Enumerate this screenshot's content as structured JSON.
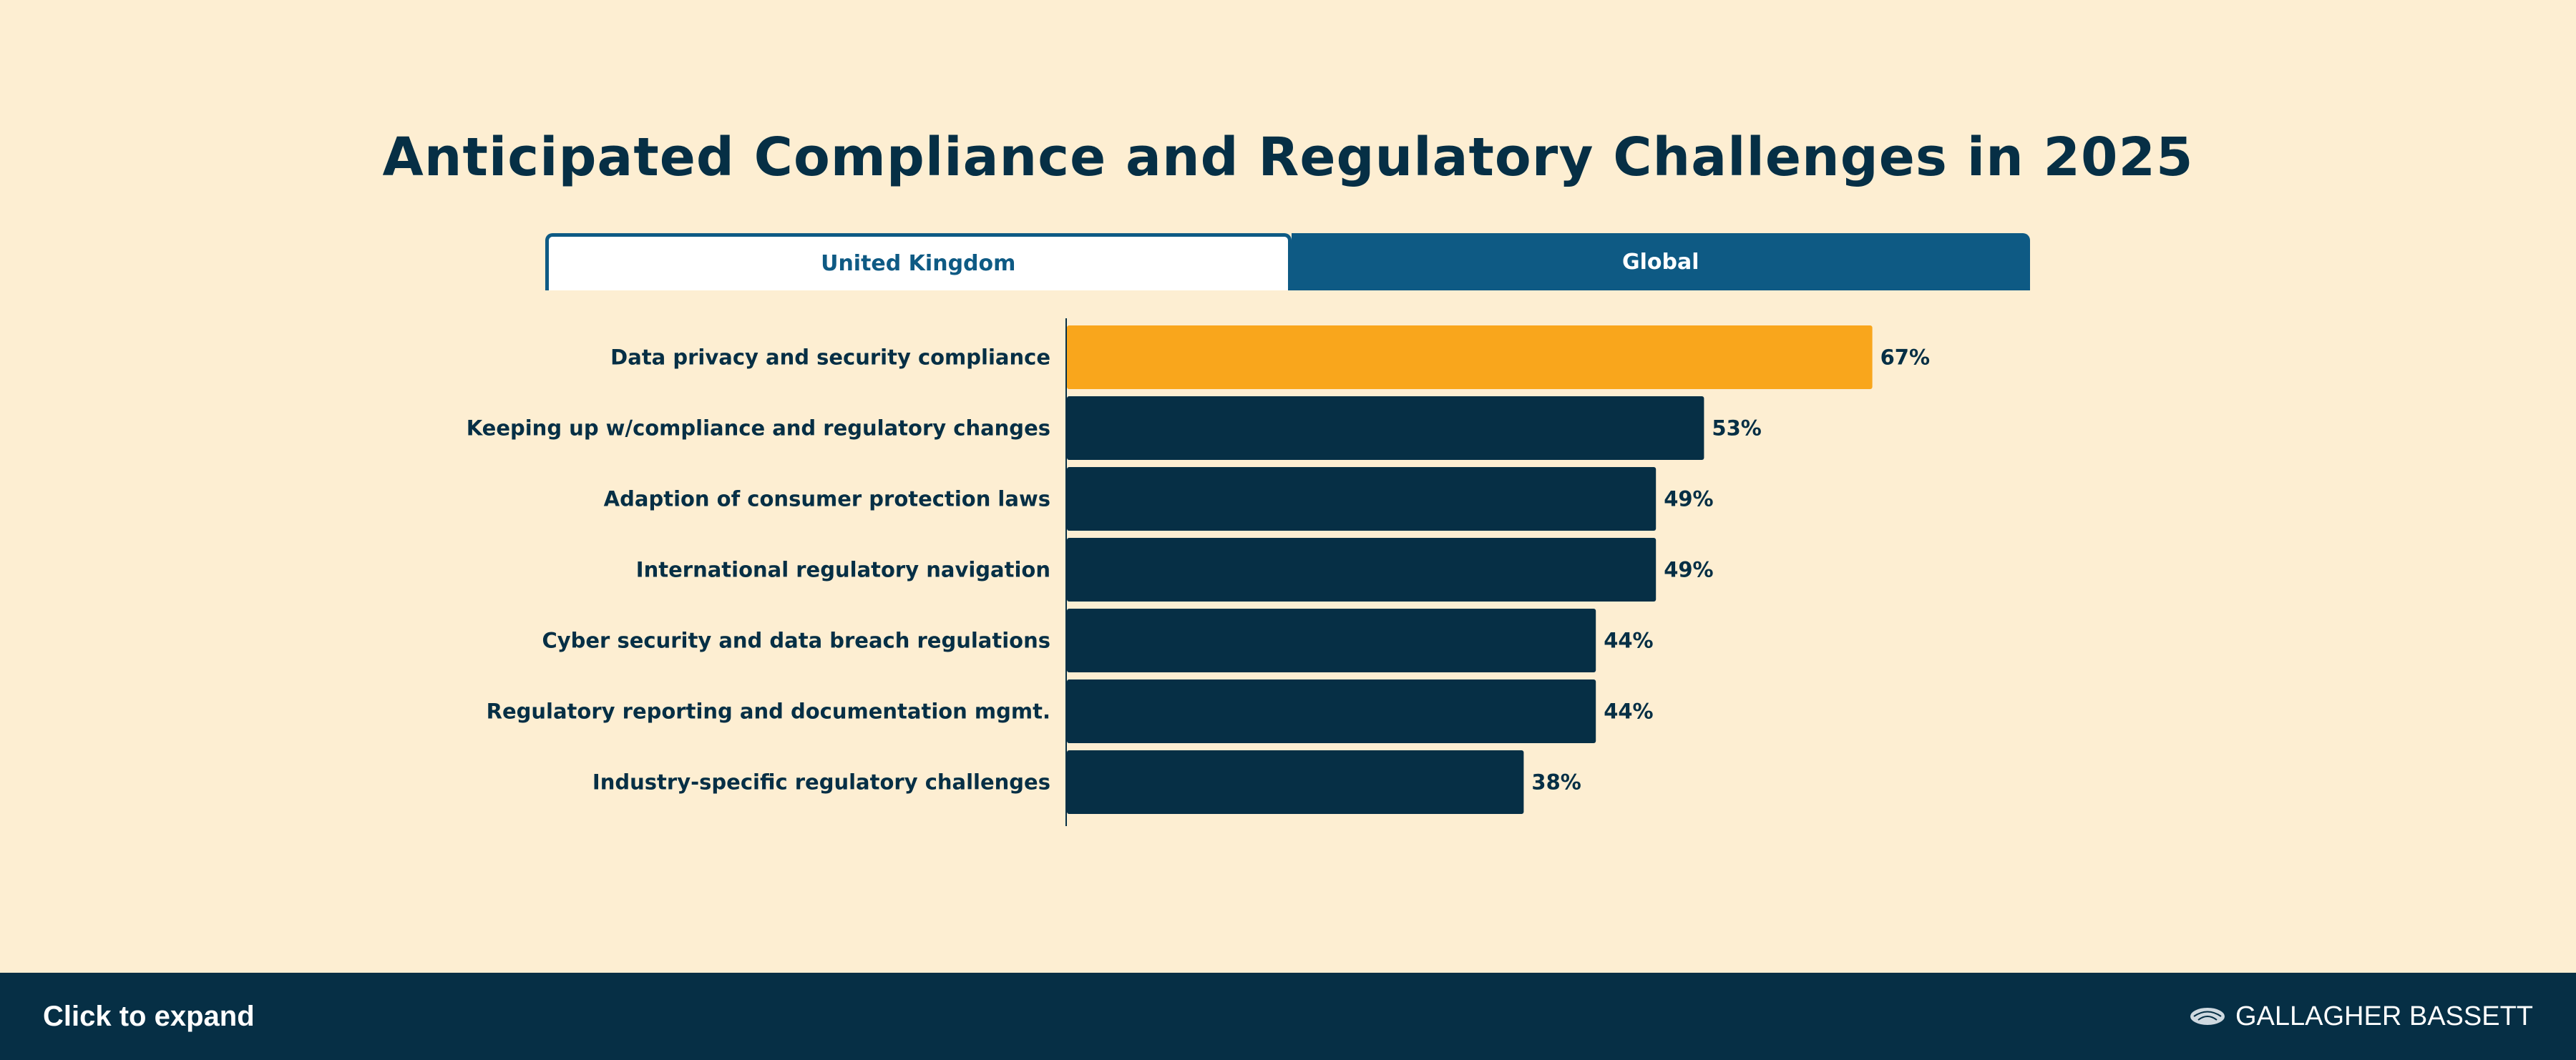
{
  "tabs": [
    {
      "label": "United Kingdom",
      "active": true
    },
    {
      "label": "Global",
      "active": false
    }
  ],
  "footer": {
    "expand_label": "Click to expand",
    "logo_text": "GALLAGHER BASSETT"
  },
  "colors": {
    "background": "#fdeed2",
    "highlight_bar": "#f9a61c",
    "bar": "#062f45",
    "tab_accent": "#0e5a84"
  },
  "chart_data": {
    "type": "bar",
    "orientation": "horizontal",
    "title": "Anticipated Compliance and Regulatory Challenges in 2025",
    "categories": [
      "Data privacy and security compliance",
      "Keeping up w/compliance and regulatory changes",
      "Adaption of consumer protection laws",
      "International regulatory navigation",
      "Cyber security and data breach regulations",
      "Regulatory reporting and documentation mgmt.",
      "Industry-specific regulatory challenges"
    ],
    "values": [
      67,
      53,
      49,
      49,
      44,
      44,
      38
    ],
    "value_labels": [
      "67%",
      "53%",
      "49%",
      "49%",
      "44%",
      "44%",
      "38%"
    ],
    "highlight_index": 0,
    "xlim": [
      0,
      100
    ],
    "grid": false
  }
}
